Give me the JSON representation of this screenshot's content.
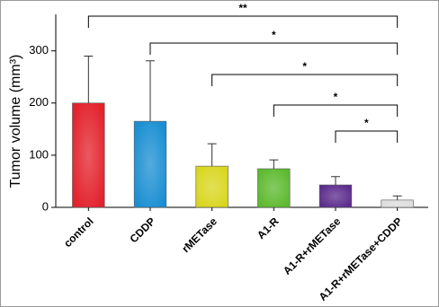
{
  "chart_data": {
    "type": "bar",
    "y_label": "Tumor volume (mm³)",
    "categories": [
      "control",
      "CDDP",
      "rMETase",
      "A1-R",
      "A1-R+rMETase",
      "A1-R+rMETase+CDDP"
    ],
    "values": [
      200,
      165,
      79,
      74,
      43,
      14
    ],
    "errors": [
      90,
      116,
      43,
      17,
      16,
      8
    ],
    "colors": [
      "#e3222c",
      "#1b8fd2",
      "#d9d61e",
      "#5cb92e",
      "#5b2a8c",
      "#dcdcdc"
    ],
    "ylim": [
      0,
      370
    ],
    "yticks": [
      0,
      100,
      200,
      300
    ],
    "significance": [
      {
        "pair": [
          "control",
          "A1-R+rMETase+CDDP"
        ],
        "label": "**"
      },
      {
        "pair": [
          "CDDP",
          "A1-R+rMETase+CDDP"
        ],
        "label": "*"
      },
      {
        "pair": [
          "rMETase",
          "A1-R+rMETase+CDDP"
        ],
        "label": "*"
      },
      {
        "pair": [
          "A1-R",
          "A1-R+rMETase+CDDP"
        ],
        "label": "*"
      },
      {
        "pair": [
          "A1-R+rMETase",
          "A1-R+rMETase+CDDP"
        ],
        "label": "*"
      }
    ]
  }
}
